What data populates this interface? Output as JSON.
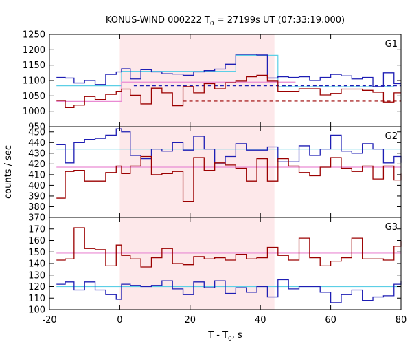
{
  "title": {
    "prefix": "KONUS-WIND 000222 T",
    "sub": "0",
    "suffix": " = 27199s UT (07:33:19.000)"
  },
  "axes": {
    "xlabel_prefix": "T - T",
    "xlabel_sub": "0",
    "xlabel_suffix": ", s",
    "ylabel": "counts / sec",
    "xlim": [
      -20,
      80
    ],
    "xticks": [
      -20,
      0,
      20,
      40,
      60,
      80
    ]
  },
  "colors": {
    "blue": "#1e1eb4",
    "red": "#9b0000",
    "cyan": "#5ccfe6",
    "pink": "#e98ad3",
    "shade": "#fde8ea"
  },
  "chart_data": {
    "type": "line",
    "shaded_interval": [
      0,
      44
    ],
    "panels": [
      {
        "label": "G1",
        "ylim": [
          950,
          1250
        ],
        "yticks": [
          950,
          1000,
          1050,
          1100,
          1150,
          1200,
          1250
        ],
        "series": [
          {
            "color": "blue",
            "step_x": [
              -18,
              -15.5,
              -13,
              -10,
              -7,
              -4,
              -1,
              0.5,
              3,
              6,
              9,
              12,
              15,
              18,
              21,
              24,
              27,
              30,
              33,
              36,
              39,
              42,
              45,
              48,
              51,
              54,
              57,
              60,
              63,
              66,
              69,
              72,
              75,
              78,
              80
            ],
            "step_y": [
              1110,
              1108,
              1092,
              1100,
              1087,
              1120,
              1128,
              1138,
              1105,
              1135,
              1128,
              1122,
              1121,
              1117,
              1128,
              1132,
              1137,
              1153,
              1185,
              1185,
              1183,
              1108,
              1112,
              1110,
              1112,
              1100,
              1110,
              1120,
              1115,
              1105,
              1110,
              1080,
              1125,
              1090
            ]
          },
          {
            "color": "red",
            "step_x": [
              -18,
              -15.5,
              -13,
              -10,
              -7,
              -4,
              -1,
              0.5,
              3,
              6,
              9,
              12,
              15,
              18,
              21,
              24,
              27,
              30,
              33,
              36,
              39,
              42,
              45,
              48,
              51,
              54,
              57,
              60,
              63,
              66,
              69,
              72,
              75,
              78,
              80
            ],
            "step_y": [
              1035,
              1012,
              1020,
              1048,
              1038,
              1055,
              1065,
              1072,
              1052,
              1024,
              1075,
              1060,
              1018,
              1080,
              1060,
              1090,
              1073,
              1093,
              1098,
              1112,
              1117,
              1098,
              1065,
              1065,
              1073,
              1073,
              1053,
              1058,
              1072,
              1072,
              1068,
              1062,
              1030,
              1060
            ]
          }
        ],
        "fits": [
          {
            "color": "cyan",
            "x": [
              -18,
              0.5,
              0.5,
              33,
              33,
              45,
              45,
              78
            ],
            "y": [
              1083,
              1083,
              1130,
              1130,
              1182,
              1182,
              1080,
              1080
            ]
          },
          {
            "color": "pink",
            "x": [
              -18,
              0.5,
              0.5,
              50
            ],
            "y": [
              1032,
              1032,
              1095,
              1095
            ]
          }
        ],
        "dashed": [
          {
            "color": "blue",
            "x": [
              4,
              80
            ],
            "y": [
              1083,
              1083
            ]
          },
          {
            "color": "red",
            "x": [
              18,
              80
            ],
            "y": [
              1033,
              1033
            ]
          }
        ]
      },
      {
        "label": "G2",
        "ylim": [
          370,
          455
        ],
        "yticks": [
          370,
          380,
          390,
          400,
          410,
          420,
          430,
          440,
          450
        ],
        "series": [
          {
            "color": "blue",
            "step_x": [
              -18,
              -15.5,
              -13,
              -10,
              -7,
              -4,
              -1,
              0.5,
              3,
              6,
              9,
              12,
              15,
              18,
              21,
              24,
              27,
              30,
              33,
              36,
              39,
              42,
              45,
              48,
              51,
              54,
              57,
              60,
              63,
              66,
              69,
              72,
              75,
              78,
              80
            ],
            "step_y": [
              438,
              421,
              440,
              443,
              444,
              447,
              453,
              450,
              428,
              425,
              434,
              432,
              440,
              433,
              446,
              434,
              420,
              427,
              439,
              433,
              433,
              436,
              422,
              422,
              437,
              428,
              434,
              447,
              432,
              430,
              439,
              434,
              421,
              427,
              421
            ]
          },
          {
            "color": "red",
            "step_x": [
              -18,
              -15.5,
              -13,
              -10,
              -7,
              -4,
              -1,
              0.5,
              3,
              6,
              9,
              12,
              15,
              18,
              21,
              24,
              27,
              30,
              33,
              36,
              39,
              42,
              45,
              48,
              51,
              54,
              57,
              60,
              63,
              66,
              69,
              72,
              75,
              78,
              80
            ],
            "step_y": [
              388,
              413,
              414,
              404,
              404,
              412,
              418,
              411,
              418,
              427,
              410,
              411,
              413,
              385,
              426,
              414,
              421,
              419,
              416,
              404,
              425,
              404,
              425,
              418,
              412,
              409,
              417,
              426,
              416,
              413,
              418,
              406,
              418,
              405,
              411
            ]
          }
        ],
        "fits": [
          {
            "color": "cyan",
            "x": [
              -18,
              80
            ],
            "y": [
              434,
              434
            ]
          },
          {
            "color": "pink",
            "x": [
              -18,
              80
            ],
            "y": [
              417,
              417
            ]
          }
        ],
        "dashed": []
      },
      {
        "label": "G3",
        "ylim": [
          100,
          180
        ],
        "yticks": [
          100,
          110,
          120,
          130,
          140,
          150,
          160,
          170
        ],
        "series": [
          {
            "color": "blue",
            "step_x": [
              -18,
              -15.5,
              -13,
              -10,
              -7,
              -4,
              -1,
              0.5,
              3,
              6,
              9,
              12,
              15,
              18,
              21,
              24,
              27,
              30,
              33,
              36,
              39,
              42,
              45,
              48,
              51,
              54,
              57,
              60,
              63,
              66,
              69,
              72,
              75,
              78,
              80
            ],
            "step_y": [
              122,
              124,
              117,
              124,
              117,
              113,
              109,
              122,
              121,
              120,
              121,
              125,
              118,
              113,
              124,
              119,
              125,
              114,
              119,
              115,
              120,
              111,
              126,
              118,
              120,
              120,
              115,
              106,
              113,
              117,
              108,
              111,
              112,
              122,
              125
            ]
          },
          {
            "color": "red",
            "step_x": [
              -18,
              -15.5,
              -13,
              -10,
              -7,
              -4,
              -1,
              0.5,
              3,
              6,
              9,
              12,
              15,
              18,
              21,
              24,
              27,
              30,
              33,
              36,
              39,
              42,
              45,
              48,
              51,
              54,
              57,
              60,
              63,
              66,
              69,
              72,
              75,
              78,
              80
            ],
            "step_y": [
              143,
              144,
              171,
              153,
              152,
              138,
              156,
              147,
              144,
              137,
              145,
              153,
              140,
              139,
              146,
              144,
              145,
              143,
              148,
              144,
              145,
              154,
              147,
              143,
              162,
              145,
              138,
              142,
              145,
              162,
              144,
              144,
              143,
              155,
              159
            ]
          }
        ],
        "fits": [
          {
            "color": "cyan",
            "x": [
              -18,
              80
            ],
            "y": [
              120,
              120
            ]
          },
          {
            "color": "pink",
            "x": [
              -18,
              80
            ],
            "y": [
              149,
              149
            ]
          }
        ],
        "dashed": []
      }
    ]
  }
}
